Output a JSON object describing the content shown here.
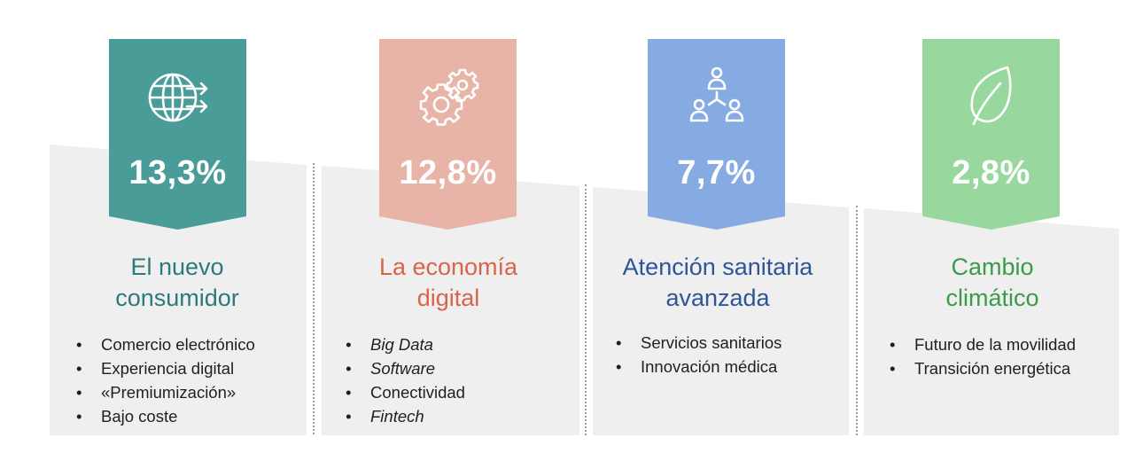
{
  "colors": {
    "teal": "#4a9c98",
    "salmon": "#e8b4a8",
    "blue": "#86abe2",
    "green": "#98d89e",
    "panel": "#efefef",
    "title_teal": "#2c7a79",
    "title_salmon": "#d9644a",
    "title_blue": "#2e5597",
    "title_green": "#3b9b49"
  },
  "cards": [
    {
      "icon": "globe-arrows-icon",
      "percentage": "13,3%",
      "title_line1": "El nuevo",
      "title_line2": "consumidor",
      "items": [
        "Comercio electrónico",
        "Experiencia digital",
        "«Premiumización»",
        "Bajo coste"
      ]
    },
    {
      "icon": "gears-icon",
      "percentage": "12,8%",
      "title_line1": "La economía",
      "title_line2": "digital",
      "items": [
        "Big Data",
        "Software",
        "Conectividad",
        "Fintech"
      ]
    },
    {
      "icon": "people-network-icon",
      "percentage": "7,7%",
      "title_line1": "Atención sanitaria",
      "title_line2": "avanzada",
      "items": [
        "Servicios sanitarios",
        "Innovación médica"
      ]
    },
    {
      "icon": "leaf-icon",
      "percentage": "2,8%",
      "title_line1": "Cambio",
      "title_line2": "climático",
      "items": [
        "Futuro de la movilidad",
        "Transición energética"
      ]
    }
  ]
}
